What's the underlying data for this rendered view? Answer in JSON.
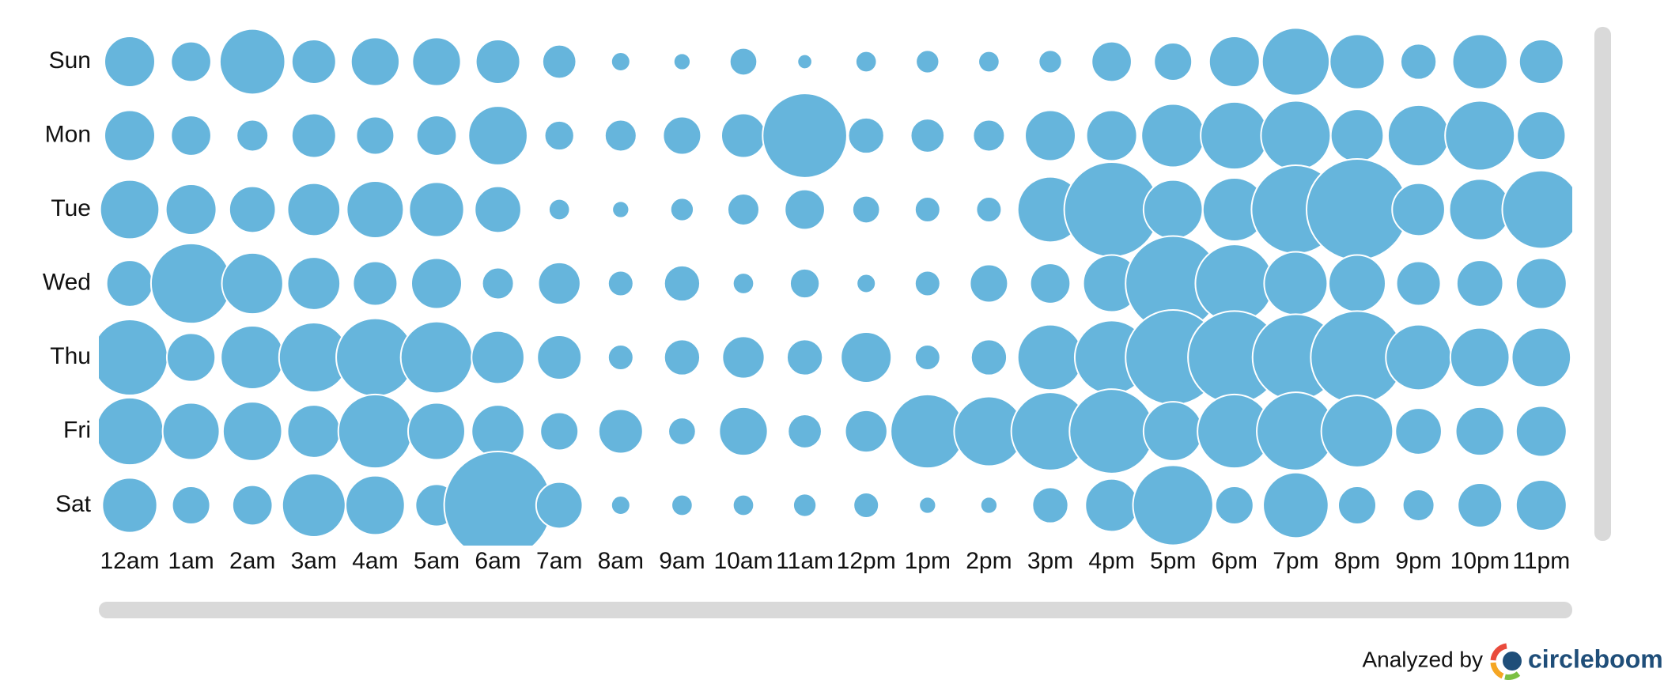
{
  "chart_data": {
    "type": "punchcard",
    "categories": [
      "12am",
      "1am",
      "2am",
      "3am",
      "4am",
      "5am",
      "6am",
      "7am",
      "8am",
      "9am",
      "10am",
      "11am",
      "12pm",
      "1pm",
      "2pm",
      "3pm",
      "4pm",
      "5pm",
      "6pm",
      "7pm",
      "8pm",
      "9pm",
      "10pm",
      "11pm"
    ],
    "color": "#66b5dc",
    "series": [
      {
        "name": "Sun",
        "values": [
          24,
          19,
          31,
          21,
          23,
          23,
          21,
          16,
          9,
          8,
          13,
          7,
          10,
          11,
          10,
          11,
          19,
          18,
          24,
          32,
          26,
          17,
          26,
          21
        ]
      },
      {
        "name": "Mon",
        "values": [
          24,
          19,
          15,
          21,
          18,
          19,
          28,
          14,
          15,
          18,
          21,
          40,
          17,
          16,
          15,
          24,
          24,
          30,
          32,
          33,
          25,
          29,
          33,
          23
        ]
      },
      {
        "name": "Tue",
        "values": [
          28,
          24,
          22,
          25,
          27,
          26,
          22,
          10,
          8,
          11,
          15,
          19,
          13,
          12,
          12,
          31,
          45,
          28,
          30,
          42,
          48,
          25,
          29,
          37
        ]
      },
      {
        "name": "Wed",
        "values": [
          22,
          38,
          29,
          25,
          21,
          24,
          15,
          20,
          12,
          17,
          10,
          14,
          9,
          12,
          18,
          19,
          27,
          45,
          37,
          30,
          27,
          21,
          22,
          24
        ]
      },
      {
        "name": "Thu",
        "values": [
          36,
          23,
          30,
          33,
          37,
          34,
          25,
          21,
          12,
          17,
          20,
          17,
          24,
          12,
          17,
          31,
          35,
          45,
          44,
          41,
          44,
          31,
          28,
          28
        ]
      },
      {
        "name": "Fri",
        "values": [
          32,
          27,
          28,
          25,
          35,
          27,
          25,
          18,
          21,
          13,
          23,
          16,
          20,
          35,
          33,
          37,
          40,
          28,
          35,
          37,
          34,
          22,
          23,
          24
        ]
      },
      {
        "name": "Sat",
        "values": [
          26,
          18,
          19,
          30,
          28,
          20,
          51,
          22,
          9,
          10,
          10,
          11,
          12,
          8,
          8,
          17,
          25,
          38,
          18,
          31,
          18,
          15,
          21,
          24
        ]
      }
    ]
  },
  "footer": {
    "text": "Analyzed by",
    "brand": "circleboom"
  }
}
